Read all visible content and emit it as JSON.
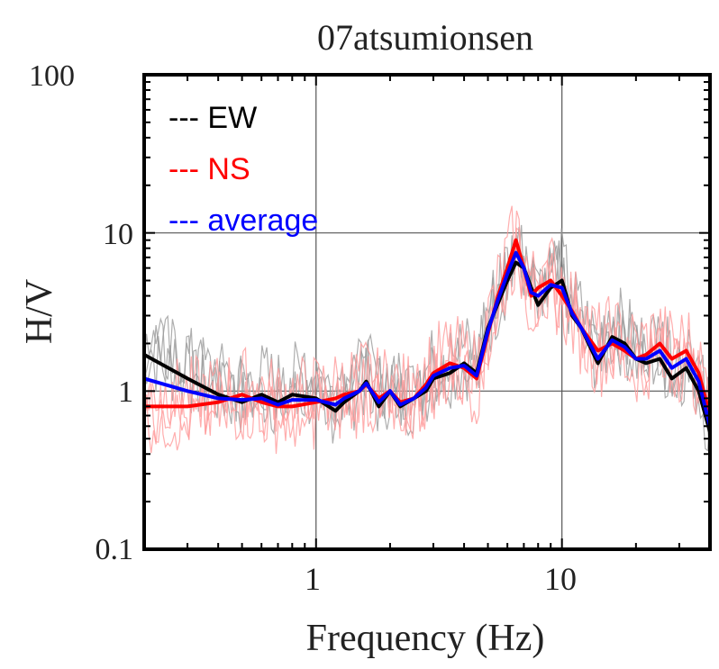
{
  "chart_data": {
    "type": "line",
    "title": "07atsumionsen",
    "xlabel": "Frequency (Hz)",
    "ylabel": "H/V",
    "xscale": "log",
    "yscale": "log",
    "xlim": [
      0.2,
      40
    ],
    "ylim": [
      0.1,
      100
    ],
    "x_tick_labels": [
      "1",
      "10"
    ],
    "y_tick_labels": [
      "0.1",
      "1",
      "10",
      "100"
    ],
    "grid": true,
    "legend_position": "top-left",
    "legend": [
      {
        "label": "--- EW",
        "color": "#000000"
      },
      {
        "label": "--- NS",
        "color": "#ff0000"
      },
      {
        "label": "--- average",
        "color": "#0000ff"
      }
    ],
    "x": [
      0.2,
      0.3,
      0.4,
      0.5,
      0.6,
      0.7,
      0.8,
      1.0,
      1.2,
      1.3,
      1.5,
      1.6,
      1.8,
      2.0,
      2.2,
      2.5,
      2.8,
      3.0,
      3.5,
      4.0,
      4.5,
      5.0,
      5.5,
      6.0,
      6.5,
      7.0,
      7.5,
      8.0,
      9.0,
      10.0,
      11.0,
      12.0,
      14.0,
      16.0,
      18.0,
      20.0,
      22.0,
      25.0,
      28.0,
      32.0,
      36.0,
      40.0
    ],
    "series": [
      {
        "name": "EW",
        "color": "#000000",
        "values": [
          1.7,
          1.2,
          0.95,
          0.85,
          0.95,
          0.85,
          0.95,
          0.9,
          0.75,
          0.85,
          1.0,
          1.15,
          0.8,
          1.0,
          0.8,
          0.9,
          1.0,
          1.2,
          1.3,
          1.5,
          1.3,
          2.5,
          3.6,
          5.0,
          6.5,
          6.0,
          4.5,
          3.5,
          4.5,
          5.0,
          3.0,
          2.5,
          1.5,
          2.2,
          2.0,
          1.6,
          1.5,
          1.6,
          1.2,
          1.4,
          1.0,
          0.55
        ]
      },
      {
        "name": "NS",
        "color": "#ff0000",
        "values": [
          0.8,
          0.8,
          0.85,
          0.95,
          0.85,
          0.8,
          0.8,
          0.85,
          0.9,
          0.95,
          1.0,
          1.1,
          0.9,
          1.0,
          0.85,
          0.9,
          1.1,
          1.3,
          1.5,
          1.4,
          1.2,
          2.3,
          4.0,
          6.0,
          9.0,
          6.0,
          4.0,
          4.5,
          5.0,
          4.0,
          3.2,
          2.5,
          1.8,
          2.0,
          1.8,
          1.6,
          1.7,
          2.0,
          1.6,
          1.8,
          1.3,
          0.7
        ]
      },
      {
        "name": "average",
        "color": "#0000ff",
        "values": [
          1.2,
          1.0,
          0.9,
          0.88,
          0.9,
          0.82,
          0.88,
          0.88,
          0.82,
          0.9,
          1.0,
          1.12,
          0.85,
          1.0,
          0.82,
          0.9,
          1.05,
          1.25,
          1.4,
          1.45,
          1.25,
          2.4,
          3.8,
          5.5,
          7.5,
          6.0,
          4.2,
          4.0,
          4.7,
          4.5,
          3.1,
          2.5,
          1.6,
          2.1,
          1.9,
          1.6,
          1.6,
          1.8,
          1.4,
          1.6,
          1.15,
          0.6
        ]
      }
    ]
  }
}
